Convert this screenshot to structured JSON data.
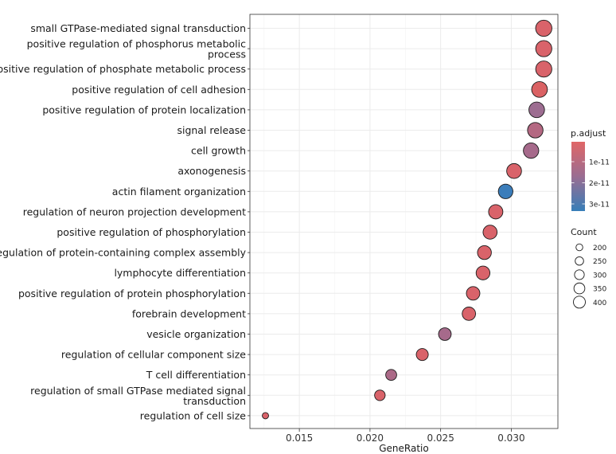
{
  "chart_data": {
    "type": "scatter",
    "xlabel": "GeneRatio",
    "xlim": [
      0.0115,
      0.0333
    ],
    "xticks": [
      0.015,
      0.02,
      0.025,
      0.03
    ],
    "xtick_labels": [
      "0.015",
      "0.020",
      "0.025",
      "0.030"
    ],
    "grid": true,
    "terms": [
      {
        "label": "small GTPase-mediated signal transduction",
        "lines": [
          "small GTPase-mediated signal transduction"
        ],
        "gene_ratio": 0.0323,
        "count": 435,
        "color": "#D9636A"
      },
      {
        "label": "positive regulation of phosphorus metabolic process",
        "lines": [
          "positive regulation of phosphorus metabolic",
          "process"
        ],
        "gene_ratio": 0.0323,
        "count": 430,
        "color": "#D9636A"
      },
      {
        "label": "positive regulation of phosphate metabolic process",
        "lines": [
          "positive regulation of phosphate metabolic process"
        ],
        "gene_ratio": 0.0323,
        "count": 430,
        "color": "#D9636A"
      },
      {
        "label": "positive regulation of cell adhesion",
        "lines": [
          "positive regulation of cell adhesion"
        ],
        "gene_ratio": 0.032,
        "count": 415,
        "color": "#DA6264"
      },
      {
        "label": "positive regulation of protein localization",
        "lines": [
          "positive regulation of protein localization"
        ],
        "gene_ratio": 0.0318,
        "count": 410,
        "color": "#9D6D91"
      },
      {
        "label": "signal release",
        "lines": [
          "signal release"
        ],
        "gene_ratio": 0.0317,
        "count": 405,
        "color": "#B46882"
      },
      {
        "label": "cell growth",
        "lines": [
          "cell growth"
        ],
        "gene_ratio": 0.0314,
        "count": 400,
        "color": "#A66A8B"
      },
      {
        "label": "axonogenesis",
        "lines": [
          "axonogenesis"
        ],
        "gene_ratio": 0.0302,
        "count": 380,
        "color": "#D9636A"
      },
      {
        "label": "actin filament organization",
        "lines": [
          "actin filament organization"
        ],
        "gene_ratio": 0.0296,
        "count": 370,
        "color": "#3B7DBA"
      },
      {
        "label": "regulation of neuron projection development",
        "lines": [
          "regulation of neuron projection development"
        ],
        "gene_ratio": 0.0289,
        "count": 360,
        "color": "#D9636A"
      },
      {
        "label": "positive regulation of phosphorylation",
        "lines": [
          "positive regulation of phosphorylation"
        ],
        "gene_ratio": 0.0285,
        "count": 352,
        "color": "#D9636A"
      },
      {
        "label": "regulation of protein-containing complex assembly",
        "lines": [
          "regulation of protein-containing complex assembly"
        ],
        "gene_ratio": 0.0281,
        "count": 345,
        "color": "#D9636A"
      },
      {
        "label": "lymphocyte differentiation",
        "lines": [
          "lymphocyte differentiation"
        ],
        "gene_ratio": 0.028,
        "count": 343,
        "color": "#D9636A"
      },
      {
        "label": "positive regulation of protein phosphorylation",
        "lines": [
          "positive regulation of protein phosphorylation"
        ],
        "gene_ratio": 0.0273,
        "count": 332,
        "color": "#D9636A"
      },
      {
        "label": "forebrain development",
        "lines": [
          "forebrain development"
        ],
        "gene_ratio": 0.027,
        "count": 328,
        "color": "#D9636A"
      },
      {
        "label": "vesicle organization",
        "lines": [
          "vesicle organization"
        ],
        "gene_ratio": 0.0253,
        "count": 305,
        "color": "#A66A8B"
      },
      {
        "label": "regulation of cellular component size",
        "lines": [
          "regulation of cellular component size"
        ],
        "gene_ratio": 0.0237,
        "count": 285,
        "color": "#D9636A"
      },
      {
        "label": "T cell differentiation",
        "lines": [
          "T cell differentiation"
        ],
        "gene_ratio": 0.0215,
        "count": 255,
        "color": "#AB6987"
      },
      {
        "label": "regulation of small GTPase mediated signal transduction",
        "lines": [
          "regulation of small GTPase mediated signal",
          "transduction"
        ],
        "gene_ratio": 0.0207,
        "count": 245,
        "color": "#D9636A"
      },
      {
        "label": "regulation of cell size",
        "lines": [
          "regulation of cell size"
        ],
        "gene_ratio": 0.0126,
        "count": 155,
        "color": "#D9636A"
      }
    ],
    "color_legend": {
      "title": "p.adjust",
      "ticks": [
        "1e-11",
        "2e-11",
        "3e-11"
      ],
      "low_color": "#E06666",
      "high_color": "#377EB8"
    },
    "size_legend": {
      "title": "Count",
      "values": [
        200,
        250,
        300,
        350,
        400
      ],
      "labels": [
        "200",
        "250",
        "300",
        "350",
        "400"
      ]
    }
  }
}
